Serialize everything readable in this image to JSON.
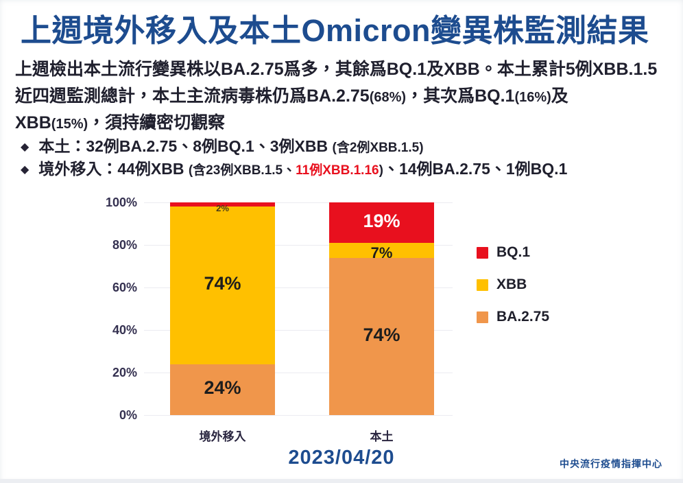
{
  "title": "上週境外移入及本土Omicron變異株監測結果",
  "paragraph": {
    "lines": [
      [
        {
          "text": "上週檢出本土流行變異株以BA.2.75爲多，其餘爲BQ.1及XBB。本土累計5例XBB.1.5"
        }
      ],
      [
        {
          "text": "近四週監測總計，本土主流病毒株仍爲BA.2.75"
        },
        {
          "text": "(68%)",
          "small": true
        },
        {
          "text": "，其次爲BQ.1"
        },
        {
          "text": "(16%)",
          "small": true
        },
        {
          "text": "及"
        }
      ],
      [
        {
          "text": "XBB"
        },
        {
          "text": "(15%)",
          "small": true
        },
        {
          "text": "，須持續密切觀察"
        }
      ]
    ]
  },
  "bullets": {
    "marker": "◆",
    "items": [
      [
        {
          "text": "本土：32例BA.2.75、8例BQ.1、3例XBB "
        },
        {
          "text": "(含2例XBB.1.5)",
          "small": true
        }
      ],
      [
        {
          "text": "境外移入：44例XBB "
        },
        {
          "text": "(含23例XBB.1.5、",
          "small": true
        },
        {
          "text": "11例XBB.1.16",
          "small": true,
          "red": true
        },
        {
          "text": ")",
          "small": true
        },
        {
          "text": "、14例BA.2.75、1例BQ.1"
        }
      ]
    ]
  },
  "chart_data": {
    "type": "stacked_bar",
    "categories": [
      "境外移入",
      "本土"
    ],
    "series": [
      {
        "name": "BA.2.75",
        "color": "#F0964B",
        "values": [
          24,
          74
        ],
        "labels": [
          {
            "text": "24%",
            "color": "#1d1d1d",
            "size": 27
          },
          {
            "text": "74%",
            "color": "#1d1d1d",
            "size": 27
          }
        ]
      },
      {
        "name": "XBB",
        "color": "#FFC000",
        "values": [
          74,
          7
        ],
        "labels": [
          {
            "text": "74%",
            "color": "#1d1d1d",
            "size": 27
          },
          {
            "text": "7%",
            "color": "#1d1d1d",
            "size": 22
          }
        ]
      },
      {
        "name": "BQ.1",
        "color": "#E8101E",
        "values": [
          2,
          19
        ],
        "labels": [
          {
            "text": "2%",
            "color": "#4a3b17",
            "size": 13
          },
          {
            "text": "19%",
            "color": "#ffffff",
            "size": 27
          }
        ]
      }
    ],
    "legend_order": [
      "BQ.1",
      "XBB",
      "BA.2.75"
    ],
    "legend_position": "right",
    "ylim": [
      0,
      100
    ],
    "yticks": [
      0,
      20,
      40,
      60,
      80,
      100
    ],
    "ytick_format": "{v}%",
    "grid": true,
    "xlabel": "",
    "ylabel": ""
  },
  "accent_colors": {
    "title_blue": "#1d4c8f",
    "red": "#E8101E",
    "yellow": "#FFC000",
    "orange": "#F0964B"
  },
  "footer": {
    "date": "2023/04/20",
    "org": "中央流行疫情指揮中心"
  }
}
